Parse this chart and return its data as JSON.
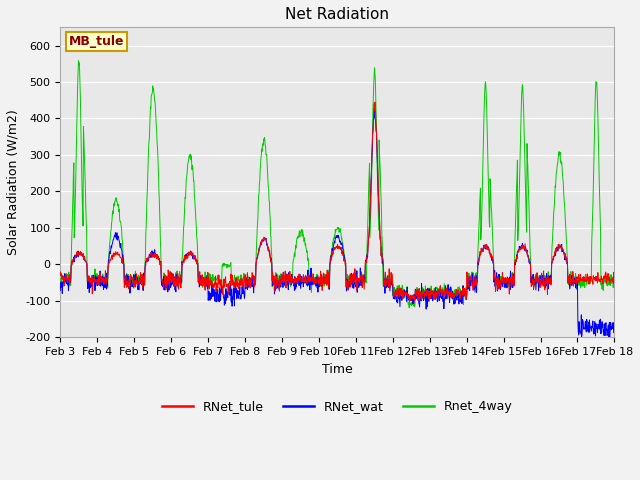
{
  "title": "Net Radiation",
  "xlabel": "Time",
  "ylabel": "Solar Radiation (W/m2)",
  "ylim": [
    -200,
    650
  ],
  "yticks": [
    -200,
    -100,
    0,
    100,
    200,
    300,
    400,
    500,
    600
  ],
  "fig_bg_color": "#f2f2f2",
  "plot_bg_color": "#e8e8e8",
  "line_colors": {
    "RNet_tule": "#ff0000",
    "RNet_wat": "#0000ff",
    "Rnet_4way": "#00cc00"
  },
  "legend_label": "MB_tule",
  "legend_box_color": "#ffffcc",
  "legend_box_edge": "#cc9900",
  "n_days": 15,
  "xtick_labels": [
    "Feb 3",
    "Feb 4",
    "Feb 5",
    "Feb 6",
    "Feb 7",
    "Feb 8",
    "Feb 9",
    "Feb 10",
    "Feb 11",
    "Feb 12",
    "Feb 13",
    "Feb 14",
    "Feb 15",
    "Feb 16",
    "Feb 17",
    "Feb 18"
  ],
  "title_fontsize": 11,
  "axis_fontsize": 9,
  "tick_fontsize": 8,
  "legend_fontsize": 9,
  "linewidth": 0.7,
  "figsize": [
    6.4,
    4.8
  ],
  "dpi": 100
}
